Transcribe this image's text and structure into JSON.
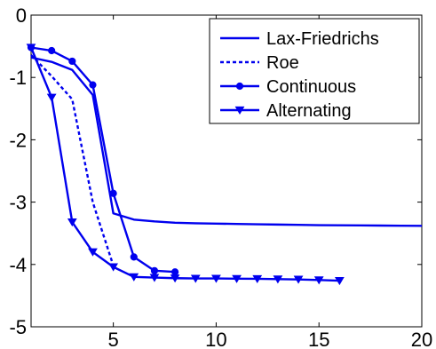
{
  "chart_data": {
    "type": "line",
    "title": "",
    "xlabel": "",
    "ylabel": "",
    "xlim": [
      1,
      20
    ],
    "ylim": [
      -5,
      0
    ],
    "xticks": [
      5,
      10,
      15,
      20
    ],
    "yticks": [
      0,
      -1,
      -2,
      -3,
      -4,
      -5
    ],
    "grid": false,
    "legend_position": "top-right",
    "line_color": "#0000ee",
    "series": [
      {
        "name": "Lax-Friedrichs",
        "style": "solid",
        "marker": "none",
        "x": [
          1,
          2,
          3,
          4,
          5,
          6,
          7,
          8,
          9,
          10,
          11,
          12,
          13,
          14,
          15,
          16,
          17,
          18,
          19,
          20
        ],
        "y": [
          -0.68,
          -0.75,
          -0.88,
          -1.28,
          -3.18,
          -3.28,
          -3.31,
          -3.33,
          -3.34,
          -3.345,
          -3.35,
          -3.355,
          -3.36,
          -3.365,
          -3.37,
          -3.372,
          -3.374,
          -3.376,
          -3.378,
          -3.38
        ]
      },
      {
        "name": "Roe",
        "style": "dashed",
        "marker": "none",
        "x": [
          1,
          2,
          3,
          4,
          5
        ],
        "y": [
          -0.64,
          -0.98,
          -1.35,
          -3.0,
          -4.02
        ]
      },
      {
        "name": "Continuous",
        "style": "solid",
        "marker": "circle",
        "x": [
          1,
          2,
          3,
          4,
          5,
          6,
          7,
          8
        ],
        "y": [
          -0.52,
          -0.57,
          -0.74,
          -1.12,
          -2.86,
          -3.88,
          -4.1,
          -4.12
        ]
      },
      {
        "name": "Alternating",
        "style": "solid",
        "marker": "triangle-down",
        "x": [
          1,
          2,
          3,
          4,
          5,
          6,
          7,
          8,
          9,
          10,
          11,
          12,
          13,
          14,
          15,
          16
        ],
        "y": [
          -0.52,
          -1.32,
          -3.32,
          -3.8,
          -4.04,
          -4.2,
          -4.21,
          -4.22,
          -4.225,
          -4.225,
          -4.228,
          -4.23,
          -4.235,
          -4.24,
          -4.25,
          -4.26
        ]
      }
    ]
  }
}
